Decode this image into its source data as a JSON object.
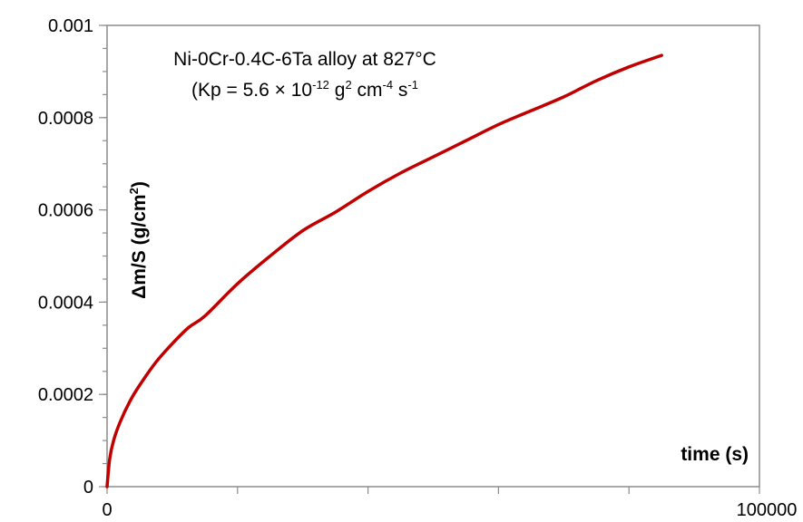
{
  "chart_data": {
    "type": "line",
    "title": "",
    "annotation": {
      "line1": "Ni-0Cr-0.4C-6Ta alloy at 827°C",
      "line2_prefix": "(Kp = 5.6 × 10",
      "line2_exp1": "-12",
      "line2_mid1": " g",
      "line2_exp2": "2",
      "line2_mid2": " cm",
      "line2_exp3": "-4",
      "line2_mid3": " s",
      "line2_exp4": "-1"
    },
    "xlabel": "time (s)",
    "ylabel": {
      "prefix": "Δm/S (g/cm",
      "exp": "2",
      "suffix": ")"
    },
    "xlim": [
      0,
      100000
    ],
    "ylim": [
      0,
      0.001
    ],
    "x_tick_labels": [
      {
        "value": 0,
        "label": "0"
      },
      {
        "value": 100000,
        "label": "100000"
      }
    ],
    "x_major_ticks": [
      0,
      20000,
      40000,
      60000,
      80000,
      100000
    ],
    "y_ticks": [
      {
        "value": 0,
        "label": "0"
      },
      {
        "value": 0.0002,
        "label": "0.0002"
      },
      {
        "value": 0.0004,
        "label": "0.0004"
      },
      {
        "value": 0.0006,
        "label": "0.0006"
      },
      {
        "value": 0.0008,
        "label": "0.0008"
      },
      {
        "value": 0.001,
        "label": "0.001"
      }
    ],
    "y_minor_step": 5e-05,
    "series": [
      {
        "color": "#c00000",
        "x": [
          0,
          400,
          1000,
          2000,
          3500,
          5000,
          7500,
          10000,
          12500,
          15000,
          20000,
          25000,
          30000,
          35000,
          40000,
          45000,
          50000,
          55000,
          60000,
          65000,
          70000,
          75000,
          80000,
          85000
        ],
        "y": [
          0.0,
          6e-05,
          0.0001,
          0.00014,
          0.000185,
          0.00022,
          0.00027,
          0.00031,
          0.000345,
          0.00037,
          0.00044,
          0.0005,
          0.000555,
          0.000595,
          0.00064,
          0.00068,
          0.000715,
          0.00075,
          0.000785,
          0.000815,
          0.000845,
          0.00088,
          0.00091,
          0.000935
        ]
      }
    ],
    "grid": false,
    "legend": "none"
  }
}
